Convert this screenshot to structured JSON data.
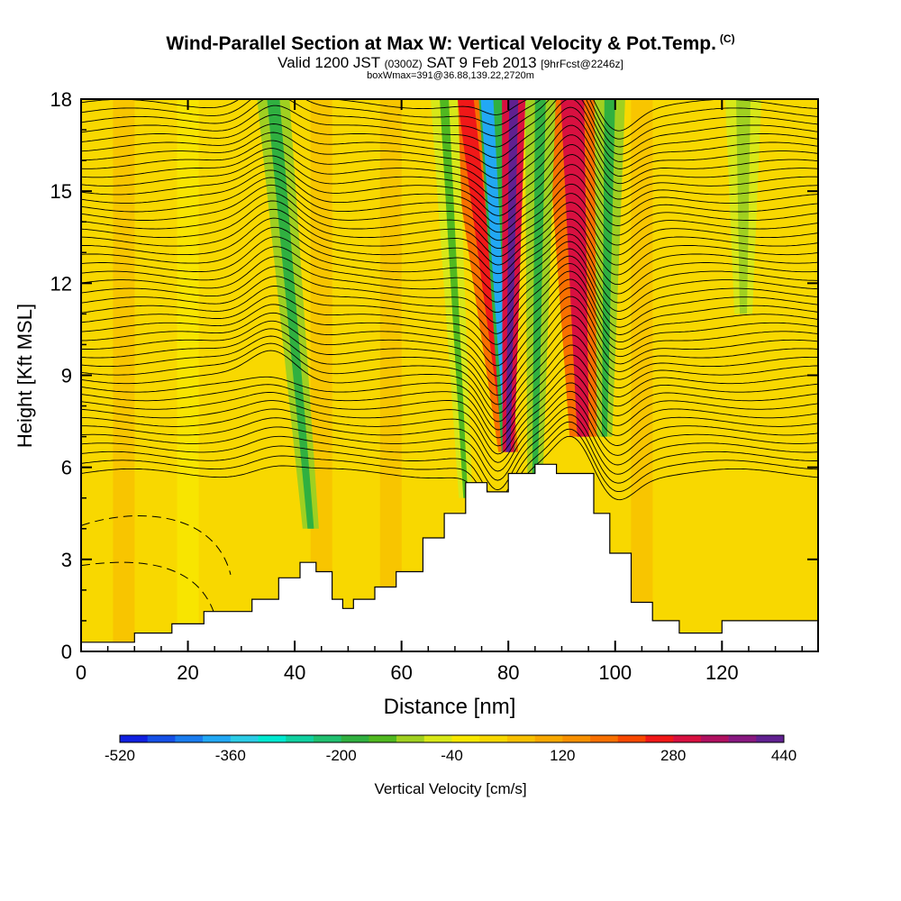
{
  "chart_data": {
    "type": "heatmap",
    "title": "Wind-Parallel Section at Max W: Vertical Velocity & Pot.Temp.",
    "title_mark": "(C)",
    "subtitle_parts": [
      "Valid 1200 JST ",
      "(0300Z)",
      " SAT 9 Feb 2013 ",
      "[9hrFcst@2246z]"
    ],
    "subtitle2": "boxWmax=391@36.88,139.22,2720m",
    "xlabel": "Distance [nm]",
    "ylabel": "Height [Kft MSL]",
    "xlim": [
      0,
      138
    ],
    "ylim": [
      0,
      18
    ],
    "x_ticks": [
      0,
      20,
      40,
      60,
      80,
      100,
      120
    ],
    "y_ticks": [
      0,
      3,
      6,
      9,
      12,
      15,
      18
    ],
    "terrain": {
      "x": [
        0,
        10,
        10,
        17,
        17,
        23,
        23,
        32,
        32,
        37,
        37,
        41,
        41,
        44,
        44,
        47,
        47,
        49,
        49,
        51,
        51,
        55,
        55,
        59,
        59,
        64,
        64,
        68,
        68,
        72,
        72,
        76,
        76,
        80,
        80,
        85,
        85,
        89,
        89,
        96,
        96,
        99,
        99,
        103,
        103,
        107,
        107,
        112,
        112,
        120,
        120,
        138
      ],
      "y": [
        0.3,
        0.3,
        0.6,
        0.6,
        0.9,
        0.9,
        1.3,
        1.3,
        1.7,
        1.7,
        2.4,
        2.4,
        2.9,
        2.9,
        2.6,
        2.6,
        1.7,
        1.7,
        1.4,
        1.4,
        1.7,
        1.7,
        2.1,
        2.1,
        2.6,
        2.6,
        3.7,
        3.7,
        4.5,
        4.5,
        5.5,
        5.5,
        5.2,
        5.2,
        5.8,
        5.8,
        6.1,
        6.1,
        5.8,
        5.8,
        4.5,
        4.5,
        3.2,
        3.2,
        1.6,
        1.6,
        1.0,
        1.0,
        0.6,
        0.6,
        1.0,
        1.0
      ]
    },
    "colorbar": {
      "label": "Vertical Velocity [cm/s]",
      "min": -520,
      "step": 40,
      "tick_labels": [
        "-520",
        "-360",
        "-200",
        "-40",
        "120",
        "280",
        "440"
      ],
      "colors": [
        "#1020e0",
        "#1550e6",
        "#1a7cee",
        "#22a8f4",
        "#2ccce6",
        "#00e8d0",
        "#10d0a0",
        "#20c070",
        "#30b040",
        "#50b820",
        "#a0d020",
        "#d8e818",
        "#f8e800",
        "#f8d800",
        "#f8c000",
        "#f8a800",
        "#f89000",
        "#f87000",
        "#f84800",
        "#f01818",
        "#d81040",
        "#b01060",
        "#881880",
        "#602090"
      ]
    },
    "w_features": [
      {
        "type": "updraft",
        "x": 79.5,
        "w": 400
      },
      {
        "type": "downdraft",
        "x": 76.5,
        "w": -380
      },
      {
        "type": "updraft",
        "x": 92,
        "w": 280
      },
      {
        "type": "updraft",
        "x": 72,
        "w": 250
      },
      {
        "type": "downdraft",
        "x": 86,
        "w": -200
      },
      {
        "type": "downdraft",
        "x": 99,
        "w": -200
      },
      {
        "type": "downdraft",
        "x": 36,
        "w": -180
      },
      {
        "type": "downdraft",
        "x": 68,
        "w": -140
      },
      {
        "type": "downdraft",
        "x": 124,
        "w": -120
      }
    ]
  }
}
